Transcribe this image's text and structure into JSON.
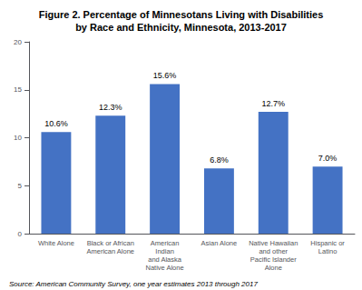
{
  "chart_data": {
    "type": "bar",
    "title": "Figure 2. Percentage of Minnesotans Living with Disabilities\nby Race and Ethnicity, Minnesota, 2013-2017",
    "categories": [
      "White Alone",
      "Black or African\nAmerican Alone",
      "American\nIndian\nand Alaska\nNative Alone",
      "Asian Alone",
      "Native Hawaiian\nand other\nPacific Islander\nAlone",
      "Hispanic or\nLatino"
    ],
    "values": [
      10.6,
      12.3,
      15.6,
      6.8,
      12.7,
      7.0
    ],
    "value_labels": [
      "10.6%",
      "12.3%",
      "15.6%",
      "6.8%",
      "12.7%",
      "7.0%"
    ],
    "data_labels": true,
    "color": "#4472c4",
    "ylim": [
      0,
      20
    ],
    "yticks": [
      0,
      5,
      10,
      15,
      20
    ],
    "grid": false,
    "annotations": [
      "Source: American Community Survey, one year estimates 2013 through 2017"
    ]
  }
}
